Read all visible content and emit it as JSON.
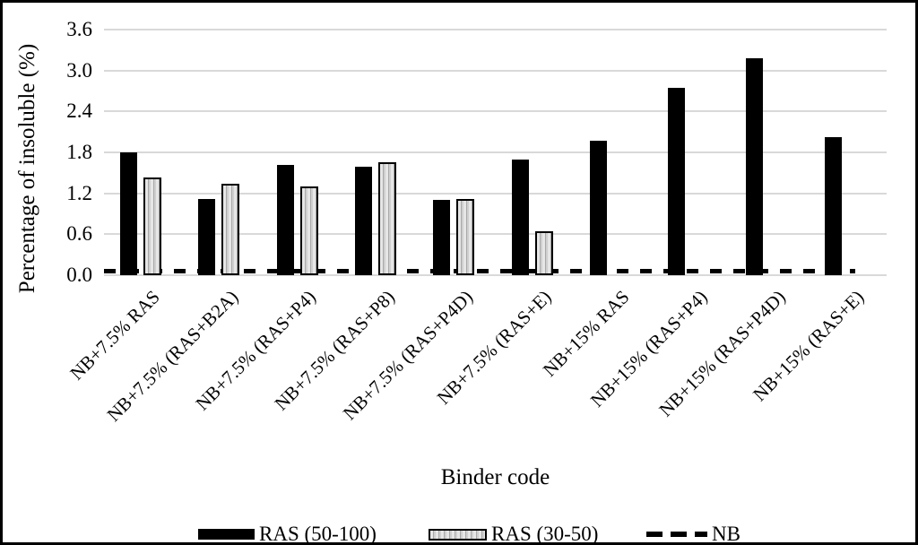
{
  "figure": {
    "y_axis_title": "Percentage of insoluble (%)",
    "x_axis_title": "Binder code"
  },
  "legend": {
    "items": [
      {
        "label": "RAS (50-100)",
        "swatch": "solid-black-bar"
      },
      {
        "label": "RAS (30-50)",
        "swatch": "striped-gray-bar"
      },
      {
        "label": "NB",
        "swatch": "black-dashed-line"
      }
    ]
  },
  "colors": {
    "bar_black": "#000000",
    "bar_gray_light": "#e6e6e6",
    "bar_gray_dark": "#a8a8a8",
    "gridline": "#d9d9d9",
    "frame": "#000000",
    "background": "#ffffff"
  },
  "chart_data": {
    "type": "bar",
    "title": "",
    "xlabel": "Binder code",
    "ylabel": "Percentage of insoluble (%)",
    "categories": [
      "NB+7.5% RAS",
      "NB+7.5% (RAS+B2A)",
      "NB+7.5% (RAS+P4)",
      "NB+7.5% (RAS+P8)",
      "NB+7.5% (RAS+P4D)",
      "NB+7.5% (RAS+E)",
      "NB+15% RAS",
      "NB+15% (RAS+P4)",
      "NB+15% (RAS+P4D)",
      "NB+15% (RAS+E)"
    ],
    "series": [
      {
        "name": "RAS (50-100)",
        "style": "solid-black",
        "values": [
          1.8,
          1.12,
          1.62,
          1.59,
          1.1,
          1.7,
          1.97,
          2.74,
          3.18,
          2.03
        ]
      },
      {
        "name": "RAS (30-50)",
        "style": "striped-gray",
        "values": [
          1.43,
          1.34,
          1.3,
          1.66,
          1.12,
          0.65,
          null,
          null,
          null,
          null
        ]
      },
      {
        "name": "NB",
        "style": "black-dashed-line",
        "values": [
          0.02,
          0.02,
          0.02,
          0.02,
          0.02,
          0.02,
          0.02,
          0.02,
          0.02,
          0.02
        ]
      }
    ],
    "yticks": [
      "0.0",
      "0.6",
      "1.2",
      "1.8",
      "2.4",
      "3.0",
      "3.6"
    ],
    "ylim": [
      0,
      3.6
    ],
    "grid": "horizontal",
    "legend_position": "bottom",
    "x_tick_rotation_deg": 45
  }
}
